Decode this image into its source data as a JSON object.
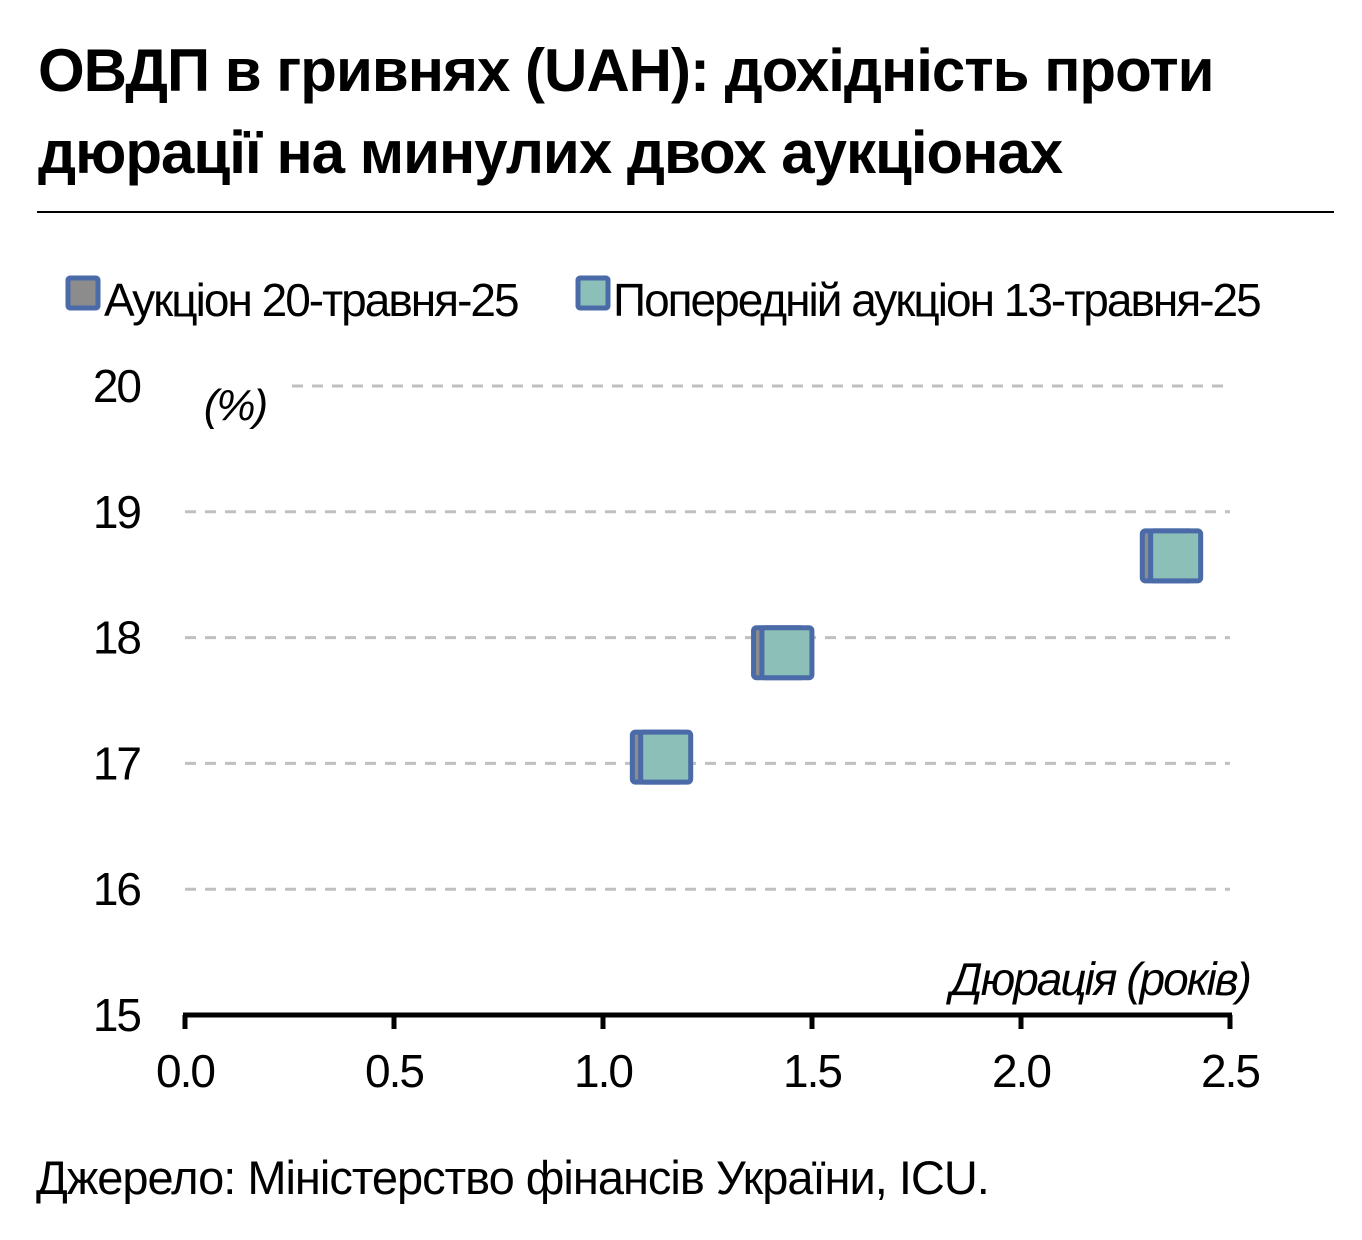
{
  "title": "ОВДП в гривнях (UAH): дохідність проти дюрації на минулих двох аукціонах",
  "source": "Джерело: Міністерство фінансів України, ICU.",
  "colors": {
    "series1_fill": "#8c8c8c",
    "series2_fill": "#8bbfb8",
    "marker_edge": "#4a6aa8",
    "grid": "#c0c0c0",
    "axis": "#000000"
  },
  "chart_data": {
    "type": "scatter",
    "title": "ОВДП в гривнях (UAH): дохідність проти дюрації на минулих двох аукціонах",
    "xlabel": "Дюрація (років)",
    "ylabel": "(%)",
    "xlim": [
      0,
      2.5
    ],
    "ylim": [
      15,
      20
    ],
    "x_ticks": [
      "0.0",
      "0.5",
      "1.0",
      "1.5",
      "2.0",
      "2.5"
    ],
    "y_ticks": [
      "15",
      "16",
      "17",
      "18",
      "19",
      "20"
    ],
    "grid": "horizontal dashed",
    "legend_position": "top",
    "series": [
      {
        "name": "Аукціон 20-травня-25",
        "marker": "square",
        "color": "#8c8c8c",
        "points": [
          {
            "x": 1.13,
            "y": 17.05
          },
          {
            "x": 1.42,
            "y": 17.88
          },
          {
            "x": 2.35,
            "y": 18.65
          }
        ]
      },
      {
        "name": "Попередній аукціон 13-травня-25",
        "marker": "square",
        "color": "#8bbfb8",
        "points": [
          {
            "x": 1.15,
            "y": 17.05
          },
          {
            "x": 1.44,
            "y": 17.88
          },
          {
            "x": 2.37,
            "y": 18.65
          }
        ]
      }
    ]
  }
}
